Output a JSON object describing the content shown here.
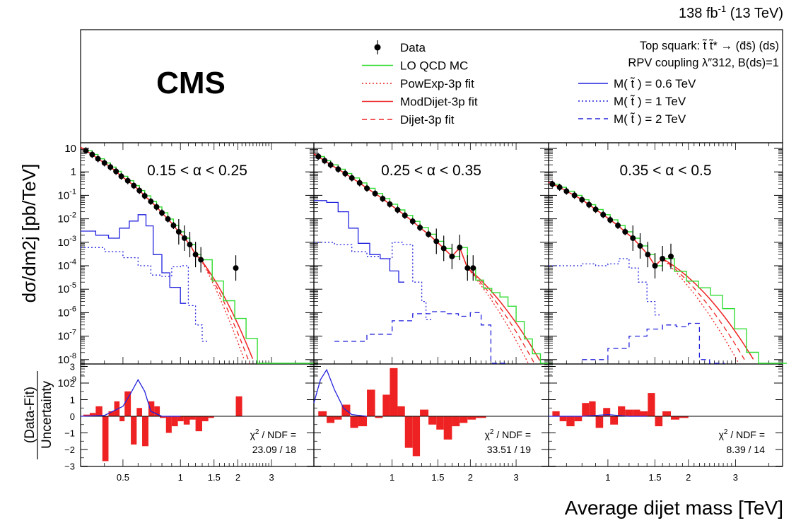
{
  "header": {
    "lumi_main": "138 fb",
    "lumi_exp": "-1",
    "energy": " (13 TeV)",
    "experiment": "CMS"
  },
  "legend": {
    "entries": [
      {
        "label": "Data",
        "style": "data-points",
        "color": "#000000"
      },
      {
        "label": "LO QCD MC",
        "style": "solid",
        "color": "#33dd33"
      },
      {
        "label": "PowExp-3p fit",
        "style": "dotted",
        "color": "#ee2222"
      },
      {
        "label": "ModDijet-3p fit",
        "style": "solid",
        "color": "#ee2222"
      },
      {
        "label": "Dijet-3p fit",
        "style": "dashed",
        "color": "#ee2222"
      }
    ],
    "signal_header": [
      "Top squark: t̃ t̃* → (d̄s̄) (ds)",
      "RPV coupling λ″312, B(ds)=1"
    ],
    "signal_entries": [
      {
        "label": "M( t̃ ) = 0.6 TeV",
        "style": "solid",
        "color": "#2222dd"
      },
      {
        "label": "M( t̃ ) = 1 TeV",
        "style": "dotted",
        "color": "#2222dd"
      },
      {
        "label": "M( t̃ ) = 2 TeV",
        "style": "dashed",
        "color": "#2222dd"
      }
    ]
  },
  "axes": {
    "ylabel_top": "dσ/dm2j [pb/TeV]",
    "ylabel_bottom_num": "(Data-Fit)",
    "ylabel_bottom_den": "Uncertainty",
    "xlabel": "Average dijet mass [TeV]",
    "y_ticks_top": [
      "10",
      "1",
      "10-1",
      "10-2",
      "10-3",
      "10-4",
      "10-5",
      "10-6",
      "10-7",
      "10-8",
      "10-9"
    ],
    "y_ticks_bottom": [
      "3",
      "2",
      "1",
      "0",
      "−1",
      "−2",
      "−3"
    ]
  },
  "chart_data": [
    {
      "type": "scatter",
      "panel": "0.15 < α < 0.25",
      "x_scale": "log",
      "y_scale": "log",
      "xlim": [
        0.3,
        5.0
      ],
      "ylim": [
        1e-10,
        40
      ],
      "x_tick_labels": [
        "0.5",
        "1",
        "1.5",
        "2",
        "3"
      ],
      "data_x": [
        0.32,
        0.345,
        0.37,
        0.4,
        0.43,
        0.46,
        0.49,
        0.53,
        0.57,
        0.61,
        0.65,
        0.7,
        0.75,
        0.8,
        0.86,
        0.92,
        0.98,
        1.05,
        1.12,
        1.2,
        1.28,
        1.95
      ],
      "data_y": [
        8,
        5.5,
        3.6,
        2.4,
        1.6,
        1.05,
        0.65,
        0.42,
        0.26,
        0.16,
        0.095,
        0.055,
        0.032,
        0.018,
        0.0098,
        0.0052,
        0.0028,
        0.0015,
        0.0008,
        0.0003,
        0.00018,
        8e-05
      ],
      "signal_06": {
        "x": [
          0.3,
          0.36,
          0.42,
          0.48,
          0.54,
          0.6,
          0.66,
          0.72,
          0.8,
          0.88,
          1.0
        ],
        "y": [
          0.003,
          0.002,
          0.0015,
          0.004,
          0.008,
          0.015,
          0.005,
          0.0003,
          5e-05,
          1.2e-05,
          2.5e-06
        ]
      },
      "signal_1": {
        "x": [
          0.3,
          0.4,
          0.5,
          0.6,
          0.7,
          0.8,
          0.9,
          1.0,
          1.1,
          1.2,
          1.3
        ],
        "y": [
          0.0006,
          0.0004,
          0.00022,
          0.0001,
          4e-05,
          3.5e-05,
          9e-05,
          0.0001,
          2e-06,
          3e-07,
          6e-08
        ]
      },
      "chi2_label": "χ2 / NDF =",
      "chi2_value": "23.09 / 18",
      "residual_x": [
        0.31,
        0.335,
        0.36,
        0.39,
        0.42,
        0.45,
        0.48,
        0.51,
        0.55,
        0.59,
        0.63,
        0.68,
        0.73,
        0.78,
        0.84,
        0.9,
        0.97,
        1.04,
        1.12,
        1.2,
        1.3,
        1.4,
        1.5,
        1.65,
        1.8,
        1.95
      ],
      "residual_y": [
        0.1,
        0.2,
        0.6,
        -2.7,
        0.3,
        0.9,
        -0.3,
        1.5,
        -1.7,
        0.5,
        -1.8,
        0.9,
        0.6,
        -0.1,
        -1.0,
        -0.6,
        -0.3,
        -0.5,
        -0.2,
        -0.9,
        -0.3,
        -0.1,
        0,
        0,
        0,
        1.2
      ],
      "residual_sig_x": [
        0.3,
        0.4,
        0.5,
        0.55,
        0.6,
        0.65,
        0.7,
        0.8,
        1.0
      ],
      "residual_sig_y": [
        0,
        0.05,
        0.6,
        1.4,
        2.2,
        1.5,
        0.3,
        0,
        0
      ]
    },
    {
      "type": "scatter",
      "panel": "0.25 < α < 0.35",
      "x_scale": "log",
      "y_scale": "log",
      "xlim": [
        0.5,
        4.0
      ],
      "ylim": [
        1e-10,
        40
      ],
      "x_tick_labels": [
        "1",
        "1.5",
        "2",
        "3"
      ],
      "data_x": [
        0.52,
        0.55,
        0.58,
        0.62,
        0.66,
        0.7,
        0.75,
        0.8,
        0.86,
        0.92,
        0.98,
        1.05,
        1.12,
        1.2,
        1.28,
        1.38,
        1.48,
        1.58,
        1.7,
        1.82,
        1.95,
        2.05
      ],
      "data_y": [
        4.5,
        3.0,
        2.0,
        1.3,
        0.85,
        0.55,
        0.34,
        0.2,
        0.12,
        0.072,
        0.042,
        0.024,
        0.014,
        0.0078,
        0.0042,
        0.0022,
        0.0011,
        0.00055,
        0.00025,
        0.0006,
        8e-05,
        8e-05
      ],
      "signal_06": {
        "x": [
          0.5,
          0.56,
          0.62,
          0.68,
          0.74,
          0.82,
          0.9,
          0.98,
          1.06
        ],
        "y": [
          0.06,
          0.05,
          0.02,
          0.004,
          0.0009,
          0.0003,
          0.0002,
          6e-05,
          2e-05
        ]
      },
      "signal_1": {
        "x": [
          0.5,
          0.6,
          0.7,
          0.8,
          0.9,
          1.0,
          1.1,
          1.2,
          1.3,
          1.35
        ],
        "y": [
          0.001,
          0.0008,
          0.0004,
          0.00025,
          0.0002,
          0.001,
          0.0008,
          2e-05,
          3e-06,
          5e-07
        ]
      },
      "signal_2": {
        "x": [
          0.6,
          0.8,
          1.0,
          1.2,
          1.4,
          1.6,
          1.8,
          2.0,
          2.2,
          2.4,
          2.6
        ],
        "y": [
          6e-08,
          1.2e-07,
          4.5e-07,
          9e-07,
          1.1e-06,
          9e-07,
          7e-07,
          1e-06,
          3e-07,
          6e-09,
          6e-10
        ]
      },
      "chi2_label": "χ2 / NDF =",
      "chi2_value": "33.51 / 19",
      "residual_x": [
        0.52,
        0.56,
        0.6,
        0.64,
        0.69,
        0.74,
        0.8,
        0.86,
        0.92,
        0.98,
        1.05,
        1.12,
        1.2,
        1.28,
        1.38,
        1.48,
        1.58,
        1.7,
        1.82,
        1.95,
        2.1,
        2.3,
        2.5
      ],
      "residual_y": [
        0.3,
        -0.4,
        -0.2,
        0.7,
        -0.7,
        -0.6,
        1.6,
        -0.1,
        1.3,
        2.9,
        0.6,
        -1.9,
        -2.4,
        0.4,
        -0.5,
        -0.8,
        -1.4,
        -0.6,
        -0.4,
        -0.2,
        -0.1,
        0,
        0
      ],
      "residual_sig_x": [
        0.5,
        0.53,
        0.56,
        0.6,
        0.65,
        0.7,
        0.8
      ],
      "residual_sig_y": [
        0.8,
        2.2,
        2.8,
        1.6,
        0.5,
        0.1,
        0
      ]
    },
    {
      "type": "scatter",
      "panel": "0.35 < α < 0.5",
      "x_scale": "log",
      "y_scale": "log",
      "xlim": [
        0.6,
        4.5
      ],
      "ylim": [
        1e-10,
        40
      ],
      "x_tick_labels": [
        "1",
        "1.5",
        "2",
        "3"
      ],
      "data_x": [
        0.62,
        0.66,
        0.7,
        0.75,
        0.8,
        0.85,
        0.9,
        0.96,
        1.02,
        1.09,
        1.16,
        1.24,
        1.32,
        1.41,
        1.5,
        1.6,
        1.72
      ],
      "data_y": [
        0.3,
        0.22,
        0.15,
        0.1,
        0.065,
        0.04,
        0.025,
        0.015,
        0.009,
        0.0052,
        0.0028,
        0.0015,
        0.0007,
        0.0003,
        0.0001,
        0.0002,
        0.00025
      ],
      "signal_1": {
        "x": [
          0.6,
          0.7,
          0.8,
          0.9,
          1.0,
          1.1,
          1.2,
          1.3,
          1.4,
          1.5
        ],
        "y": [
          0.0001,
          0.0001,
          0.00012,
          0.0001,
          0.00012,
          0.0002,
          8e-05,
          2e-05,
          3e-06,
          8e-07
        ]
      },
      "signal_2": {
        "x": [
          0.8,
          1.0,
          1.2,
          1.4,
          1.6,
          1.8,
          2.0,
          2.2,
          2.4,
          2.6
        ],
        "y": [
          1e-08,
          3e-08,
          1e-07,
          2e-07,
          3e-07,
          2.5e-07,
          3.5e-07,
          1e-08,
          1e-09,
          5e-10
        ]
      },
      "chi2_label": "χ2 / NDF =",
      "chi2_value": "8.39 / 14",
      "residual_x": [
        0.62,
        0.66,
        0.7,
        0.75,
        0.8,
        0.85,
        0.9,
        0.96,
        1.02,
        1.09,
        1.16,
        1.24,
        1.32,
        1.41,
        1.5,
        1.6,
        1.72,
        1.85,
        2.0,
        2.2
      ],
      "residual_y": [
        0.3,
        -0.3,
        -0.6,
        -0.3,
        0.8,
        0.9,
        -0.7,
        0.5,
        -0.5,
        0.6,
        0.4,
        0.4,
        0.3,
        1.4,
        -0.6,
        0.3,
        -0.2,
        -0.1,
        0,
        0
      ],
      "residual_sig_x": [
        0.6,
        0.8,
        1.0,
        1.2,
        1.4
      ],
      "residual_sig_y": [
        0,
        0,
        0.1,
        0,
        0
      ]
    }
  ]
}
